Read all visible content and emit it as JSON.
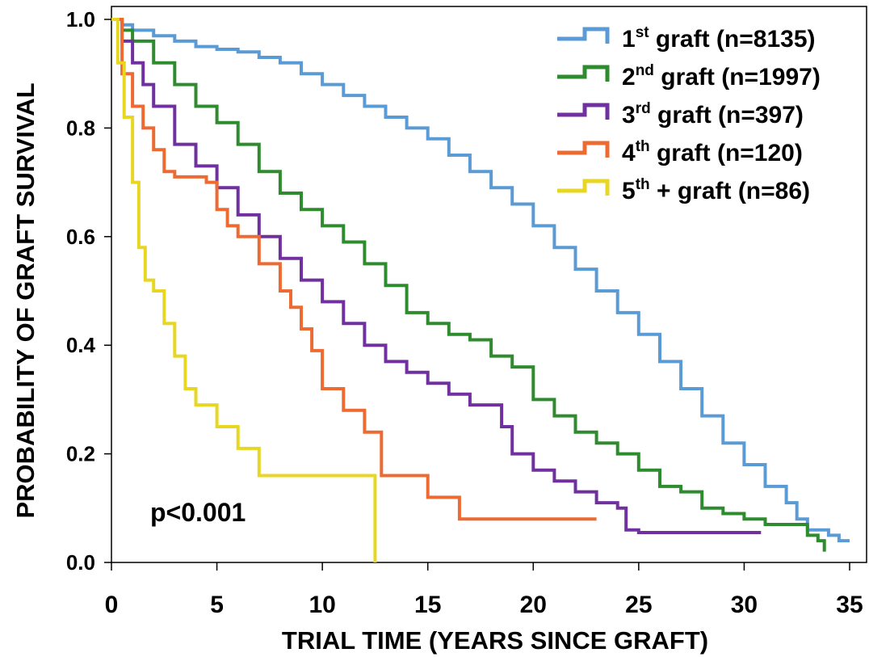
{
  "chart_data": {
    "type": "line",
    "step": true,
    "xlabel": "TRIAL TIME (YEARS SINCE GRAFT)",
    "ylabel": "PROBABILITY OF GRAFT SURVIVAL",
    "xlim": [
      0,
      35.5
    ],
    "ylim": [
      0,
      1.01
    ],
    "xticks": [
      0,
      5,
      10,
      15,
      20,
      25,
      30,
      35
    ],
    "yticks": [
      0.0,
      0.2,
      0.4,
      0.6,
      0.8,
      1.0
    ],
    "ytick_labels": [
      "0.0",
      "0.2",
      "0.4",
      "0.6",
      "0.8",
      "1.0"
    ],
    "grid": false,
    "legend_position": "top-right",
    "annotation": "p<0.001",
    "series": [
      {
        "name": "1st graft (n=8135)",
        "label_main": "1",
        "label_sup": "st",
        "label_rest": " graft (n=8135)",
        "color": "#5b9bd5",
        "x": [
          0,
          0.5,
          1,
          2,
          3,
          4,
          5,
          6,
          7,
          8,
          9,
          10,
          11,
          12,
          13,
          14,
          15,
          16,
          17,
          18,
          19,
          20,
          21,
          22,
          23,
          24,
          25,
          26,
          27,
          28,
          29,
          30,
          31,
          32,
          32.5,
          33,
          34,
          34.5,
          35
        ],
        "y": [
          1.0,
          0.99,
          0.98,
          0.97,
          0.96,
          0.95,
          0.945,
          0.94,
          0.93,
          0.92,
          0.9,
          0.88,
          0.86,
          0.84,
          0.82,
          0.8,
          0.78,
          0.75,
          0.72,
          0.69,
          0.66,
          0.62,
          0.58,
          0.54,
          0.5,
          0.46,
          0.42,
          0.37,
          0.32,
          0.27,
          0.22,
          0.18,
          0.14,
          0.11,
          0.08,
          0.06,
          0.05,
          0.04,
          0.04
        ]
      },
      {
        "name": "2nd graft (n=1997)",
        "label_main": "2",
        "label_sup": "nd",
        "label_rest": " graft (n=1997)",
        "color": "#2e8b2e",
        "x": [
          0,
          0.5,
          1,
          2,
          3,
          4,
          5,
          6,
          7,
          8,
          9,
          10,
          11,
          12,
          13,
          14,
          15,
          16,
          17,
          18,
          19,
          20,
          21,
          22,
          23,
          24,
          25,
          26,
          27,
          28,
          29,
          30,
          31,
          32,
          33,
          33.5,
          33.8
        ],
        "y": [
          1.0,
          0.98,
          0.96,
          0.92,
          0.88,
          0.84,
          0.81,
          0.77,
          0.72,
          0.68,
          0.65,
          0.62,
          0.59,
          0.55,
          0.51,
          0.46,
          0.44,
          0.42,
          0.41,
          0.38,
          0.36,
          0.3,
          0.27,
          0.24,
          0.22,
          0.2,
          0.17,
          0.14,
          0.13,
          0.1,
          0.09,
          0.08,
          0.07,
          0.07,
          0.05,
          0.04,
          0.02
        ]
      },
      {
        "name": "3rd graft (n=397)",
        "label_main": "3",
        "label_sup": "rd",
        "label_rest": " graft (n=397)",
        "color": "#7030a0",
        "x": [
          0,
          0.5,
          1,
          1.5,
          2,
          3,
          4,
          5,
          6,
          7,
          8,
          9,
          10,
          11,
          12,
          13,
          14,
          15,
          16,
          17,
          18,
          18.5,
          19,
          20,
          21,
          22,
          23,
          24,
          24.4,
          25,
          27,
          29,
          30.8
        ],
        "y": [
          1.0,
          0.96,
          0.92,
          0.88,
          0.84,
          0.77,
          0.73,
          0.69,
          0.64,
          0.6,
          0.56,
          0.52,
          0.48,
          0.44,
          0.4,
          0.37,
          0.35,
          0.33,
          0.31,
          0.29,
          0.29,
          0.25,
          0.2,
          0.17,
          0.15,
          0.13,
          0.11,
          0.1,
          0.06,
          0.055,
          0.055,
          0.055,
          0.055
        ]
      },
      {
        "name": "4th graft (n=120)",
        "label_main": "4",
        "label_sup": "th",
        "label_rest": " graft (n=120)",
        "color": "#ed6a32",
        "x": [
          0,
          0.5,
          1,
          1.5,
          2,
          2.5,
          3,
          4,
          4.5,
          5,
          5.5,
          6,
          7,
          8,
          8.5,
          9,
          9.5,
          10,
          11,
          12,
          12.8,
          13,
          14,
          15,
          16,
          16.5,
          18,
          20,
          23
        ],
        "y": [
          1.0,
          0.9,
          0.84,
          0.8,
          0.76,
          0.72,
          0.71,
          0.71,
          0.7,
          0.65,
          0.62,
          0.6,
          0.55,
          0.5,
          0.47,
          0.43,
          0.39,
          0.32,
          0.28,
          0.24,
          0.16,
          0.16,
          0.16,
          0.12,
          0.12,
          0.08,
          0.08,
          0.08,
          0.08
        ]
      },
      {
        "name": "5th + graft (n=86)",
        "label_main": "5",
        "label_sup": "th",
        "label_rest": " + graft (n=86)",
        "color": "#e8d722",
        "x": [
          0,
          0.3,
          0.6,
          1,
          1.3,
          1.6,
          2,
          2.5,
          3,
          3.5,
          4,
          5,
          6,
          7,
          8,
          10,
          12,
          12.5
        ],
        "y": [
          1.0,
          0.92,
          0.82,
          0.7,
          0.58,
          0.52,
          0.5,
          0.44,
          0.38,
          0.32,
          0.29,
          0.25,
          0.21,
          0.16,
          0.16,
          0.16,
          0.16,
          0.0
        ]
      }
    ]
  }
}
